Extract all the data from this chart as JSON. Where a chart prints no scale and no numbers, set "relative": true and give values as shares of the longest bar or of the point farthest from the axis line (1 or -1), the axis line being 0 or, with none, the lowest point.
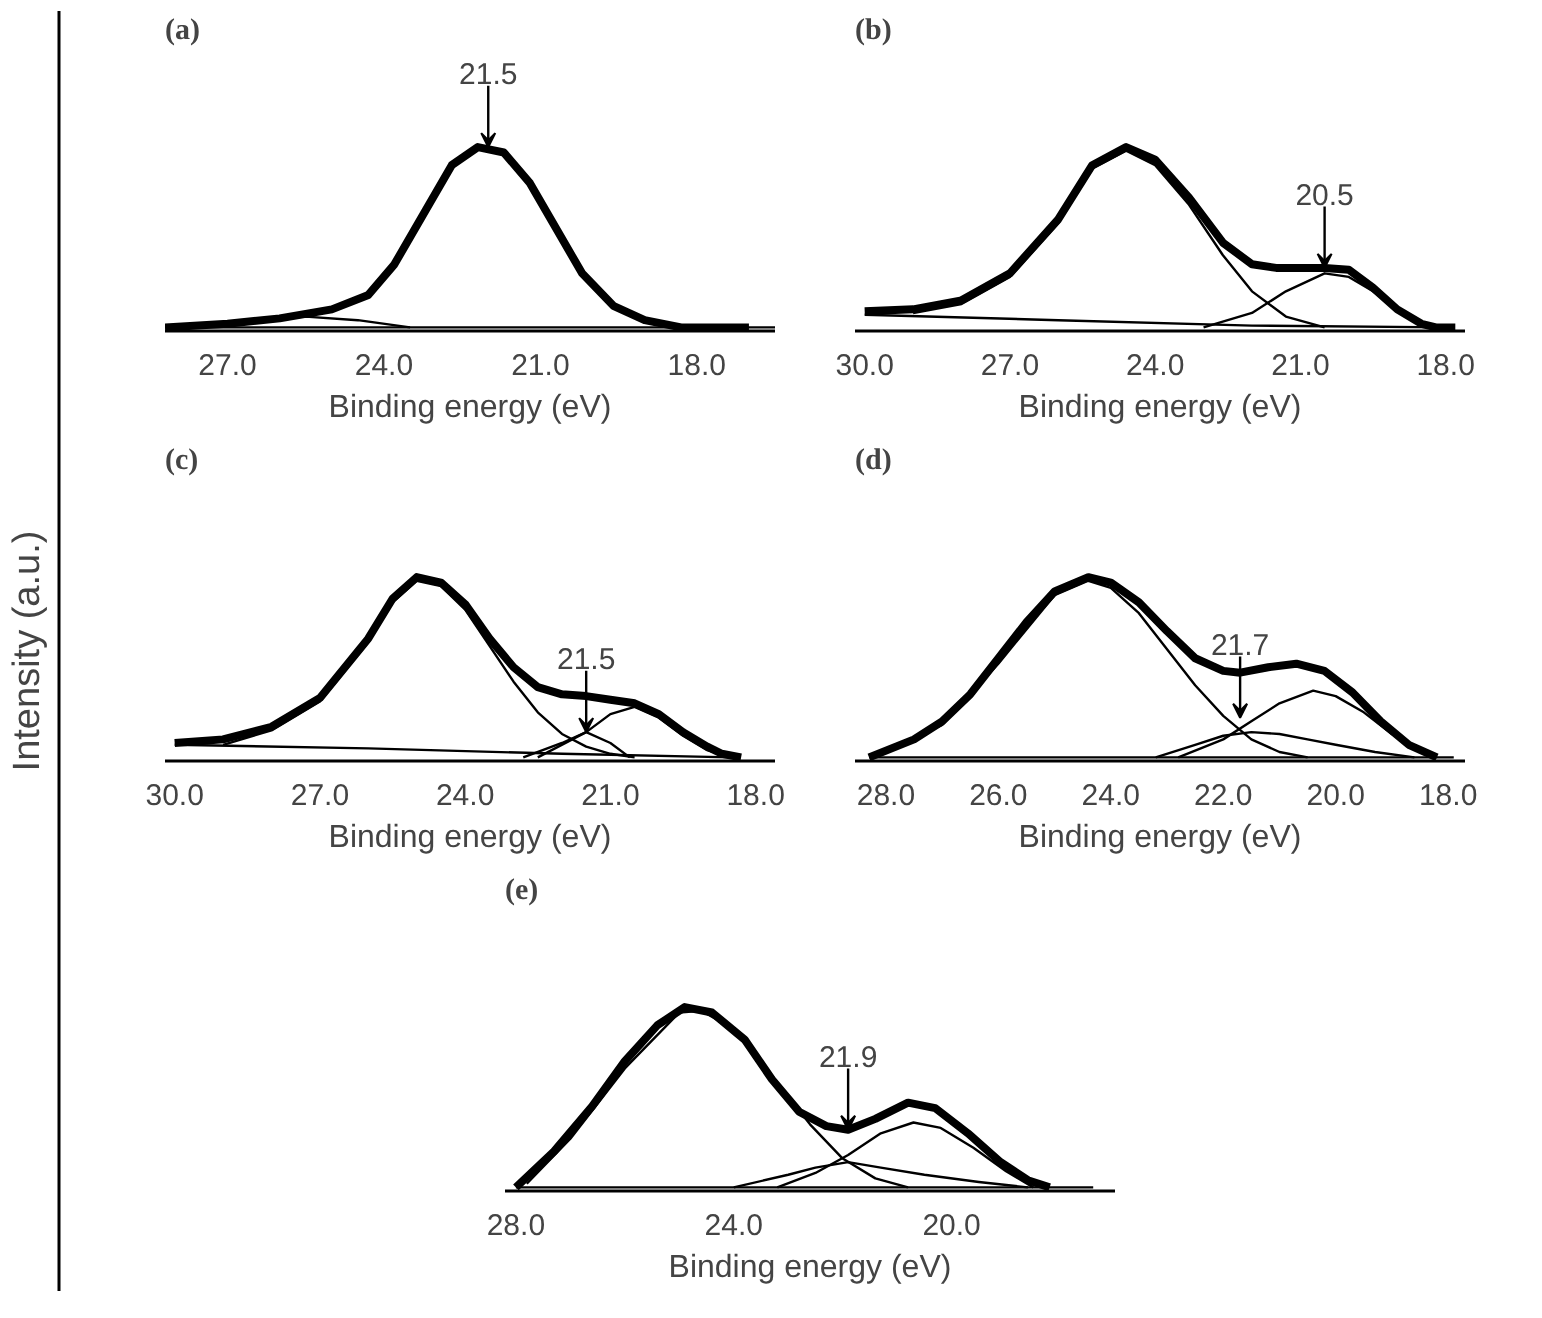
{
  "chart_data": [
    {
      "type": "line",
      "title": "(a)",
      "xlabel": "Binding energy (eV)",
      "ylabel": "Intensity (a.u.)",
      "relative": true,
      "xlim": [
        28.2,
        16.5
      ],
      "xticks": [
        {
          "value": 27,
          "label": "27.0"
        },
        {
          "value": 24,
          "label": "24.0"
        },
        {
          "value": 21,
          "label": "21.0"
        },
        {
          "value": 18,
          "label": "18.0"
        }
      ],
      "annotations": [
        {
          "text": "21.5",
          "x": 22.0,
          "y": 1.0
        }
      ],
      "series": [
        {
          "color": "#000000",
          "x": [
            28.2,
            27,
            26,
            25,
            24.3,
            23.8,
            23.2,
            22.7,
            22.2,
            21.7,
            21.2,
            20.7,
            20.2,
            19.6,
            19.0,
            18.3,
            17.0
          ],
          "values": [
            0.0,
            0.02,
            0.05,
            0.1,
            0.18,
            0.35,
            0.65,
            0.9,
            1.0,
            0.97,
            0.8,
            0.55,
            0.3,
            0.12,
            0.04,
            0.0,
            0.0
          ]
        },
        {
          "color": "#000000",
          "x": [
            27.5,
            26.5,
            25.5,
            24.5,
            23.5
          ],
          "values": [
            0.0,
            0.04,
            0.06,
            0.04,
            0.0
          ]
        },
        {
          "color": "#000000",
          "x": [
            28.2,
            16.5
          ],
          "values": [
            0.0,
            0.0
          ]
        }
      ]
    },
    {
      "type": "line",
      "title": "(b)",
      "xlabel": "Binding energy (eV)",
      "relative": true,
      "xlim": [
        30.2,
        17.6
      ],
      "xticks": [
        {
          "value": 30,
          "label": "30.0"
        },
        {
          "value": 27,
          "label": "27.0"
        },
        {
          "value": 24,
          "label": "24.0"
        },
        {
          "value": 21,
          "label": "21.0"
        },
        {
          "value": 18,
          "label": "18.0"
        }
      ],
      "annotations": [
        {
          "text": "20.5",
          "x": 20.5,
          "y": 0.33
        }
      ],
      "series": [
        {
          "color": "#000000",
          "x": [
            30,
            29,
            28,
            27,
            26,
            25.3,
            24.6,
            24,
            23.3,
            22.6,
            22,
            21.5,
            20.5,
            20,
            19.5,
            19,
            18.5,
            18.2,
            17.8
          ],
          "values": [
            0.09,
            0.1,
            0.15,
            0.3,
            0.6,
            0.9,
            1.0,
            0.93,
            0.72,
            0.47,
            0.35,
            0.33,
            0.33,
            0.32,
            0.22,
            0.1,
            0.02,
            0.0,
            0.0
          ]
        },
        {
          "color": "#000000",
          "x": [
            29,
            28,
            27,
            26,
            25.3,
            24.6,
            24,
            23.3,
            22.6,
            22,
            21.3,
            20.5
          ],
          "values": [
            0.08,
            0.13,
            0.28,
            0.58,
            0.88,
            0.98,
            0.9,
            0.68,
            0.4,
            0.2,
            0.06,
            0.0
          ]
        },
        {
          "color": "#000000",
          "x": [
            23,
            22,
            21.3,
            20.5,
            20,
            19.5,
            19,
            18.5,
            18.2
          ],
          "values": [
            0.0,
            0.08,
            0.2,
            0.3,
            0.28,
            0.2,
            0.1,
            0.02,
            0.0
          ]
        },
        {
          "color": "#000000",
          "x": [
            30,
            26,
            22,
            18
          ],
          "values": [
            0.07,
            0.04,
            0.01,
            0.0
          ]
        }
      ]
    },
    {
      "type": "line",
      "title": "(c)",
      "xlabel": "Binding energy (eV)",
      "relative": true,
      "xlim": [
        30.2,
        17.6
      ],
      "xticks": [
        {
          "value": 30,
          "label": "30.0"
        },
        {
          "value": 27,
          "label": "27.0"
        },
        {
          "value": 24,
          "label": "24.0"
        },
        {
          "value": 21,
          "label": "21.0"
        },
        {
          "value": 18,
          "label": "18.0"
        }
      ],
      "annotations": [
        {
          "text": "21.5",
          "x": 21.5,
          "y": 0.14
        }
      ],
      "series": [
        {
          "color": "#000000",
          "x": [
            30,
            29,
            28,
            27,
            26,
            25.5,
            25,
            24.5,
            24,
            23.5,
            23,
            22.5,
            22,
            21.5,
            21,
            20.5,
            20,
            19.5,
            19,
            18.7,
            18.3
          ],
          "values": [
            0.08,
            0.1,
            0.17,
            0.33,
            0.66,
            0.88,
            1.0,
            0.97,
            0.85,
            0.66,
            0.5,
            0.39,
            0.35,
            0.34,
            0.32,
            0.3,
            0.24,
            0.14,
            0.06,
            0.02,
            0.0
          ]
        },
        {
          "color": "#000000",
          "x": [
            29,
            28,
            27,
            26,
            25.5,
            25,
            24.5,
            24,
            23.5,
            23,
            22.5,
            22,
            21.5,
            21,
            20.5
          ],
          "values": [
            0.07,
            0.15,
            0.31,
            0.64,
            0.86,
            0.98,
            0.95,
            0.82,
            0.62,
            0.42,
            0.25,
            0.13,
            0.06,
            0.02,
            0.0
          ]
        },
        {
          "color": "#000000",
          "x": [
            22.8,
            22,
            21.5,
            21,
            20.6
          ],
          "values": [
            0.0,
            0.08,
            0.14,
            0.08,
            0.0
          ]
        },
        {
          "color": "#000000",
          "x": [
            22.5,
            21.5,
            21,
            20.5,
            20,
            19.5,
            19,
            18.5
          ],
          "values": [
            0.0,
            0.14,
            0.24,
            0.28,
            0.22,
            0.12,
            0.04,
            0.0
          ]
        },
        {
          "color": "#000000",
          "x": [
            30,
            26,
            22,
            18.5
          ],
          "values": [
            0.07,
            0.05,
            0.02,
            0.0
          ]
        }
      ]
    },
    {
      "type": "line",
      "title": "(d)",
      "xlabel": "Binding energy (eV)",
      "relative": true,
      "xlim": [
        28.55,
        17.7
      ],
      "xticks": [
        {
          "value": 28,
          "label": "28.0"
        },
        {
          "value": 26,
          "label": "26.0"
        },
        {
          "value": 24,
          "label": "24.0"
        },
        {
          "value": 22,
          "label": "22.0"
        },
        {
          "value": 20,
          "label": "20.0"
        },
        {
          "value": 18,
          "label": "18.0"
        }
      ],
      "annotations": [
        {
          "text": "21.7",
          "x": 21.7,
          "y": 0.22
        }
      ],
      "series": [
        {
          "color": "#000000",
          "x": [
            28.3,
            27.5,
            27,
            26.5,
            26,
            25.5,
            25,
            24.4,
            24,
            23.5,
            23,
            22.5,
            22,
            21.7,
            21.2,
            20.7,
            20.2,
            19.7,
            19.2,
            18.7,
            18.2
          ],
          "values": [
            0.0,
            0.1,
            0.2,
            0.35,
            0.55,
            0.75,
            0.92,
            1.0,
            0.97,
            0.86,
            0.7,
            0.55,
            0.48,
            0.47,
            0.5,
            0.52,
            0.48,
            0.36,
            0.2,
            0.07,
            0.0
          ]
        },
        {
          "color": "#000000",
          "x": [
            28,
            27,
            26,
            25,
            24.4,
            24,
            23.5,
            23,
            22.5,
            22,
            21.5,
            21,
            20.5
          ],
          "values": [
            0.03,
            0.18,
            0.52,
            0.9,
            0.98,
            0.94,
            0.8,
            0.6,
            0.4,
            0.23,
            0.1,
            0.03,
            0.0
          ]
        },
        {
          "color": "#000000",
          "x": [
            23.2,
            22.5,
            22,
            21.5,
            21,
            20.5,
            20,
            19.3,
            18.6
          ],
          "values": [
            0.0,
            0.07,
            0.12,
            0.14,
            0.13,
            0.1,
            0.07,
            0.03,
            0.0
          ]
        },
        {
          "color": "#000000",
          "x": [
            22.8,
            22,
            21.5,
            21,
            20.4,
            20,
            19.5,
            19,
            18.5,
            18.2
          ],
          "values": [
            0.0,
            0.1,
            0.2,
            0.3,
            0.37,
            0.34,
            0.25,
            0.13,
            0.04,
            0.0
          ]
        },
        {
          "color": "#000000",
          "x": [
            28.3,
            17.9
          ],
          "values": [
            0.0,
            0.0
          ]
        }
      ]
    },
    {
      "type": "line",
      "title": "(e)",
      "xlabel": "Binding energy (eV)",
      "relative": true,
      "xlim": [
        28.2,
        17.0
      ],
      "xticks": [
        {
          "value": 28,
          "label": "28.0"
        },
        {
          "value": 24,
          "label": "24.0"
        },
        {
          "value": 20,
          "label": "20.0"
        }
      ],
      "annotations": [
        {
          "text": "21.9",
          "x": 21.9,
          "y": 0.32
        }
      ],
      "series": [
        {
          "color": "#000000",
          "x": [
            28.0,
            27.3,
            26.6,
            26,
            25.4,
            24.9,
            24.4,
            23.8,
            23.3,
            22.8,
            22.3,
            21.9,
            21.4,
            20.8,
            20.3,
            19.7,
            19.1,
            18.6,
            18.2
          ],
          "values": [
            0.0,
            0.2,
            0.45,
            0.7,
            0.9,
            1.0,
            0.97,
            0.82,
            0.6,
            0.42,
            0.34,
            0.32,
            0.38,
            0.47,
            0.44,
            0.3,
            0.14,
            0.04,
            0.0
          ]
        },
        {
          "color": "#000000",
          "x": [
            27.8,
            27,
            26,
            25,
            24.6,
            24,
            23.3,
            22.6,
            22,
            21.4,
            20.8
          ],
          "values": [
            0.02,
            0.27,
            0.66,
            0.97,
            0.98,
            0.88,
            0.62,
            0.35,
            0.16,
            0.05,
            0.0
          ]
        },
        {
          "color": "#000000",
          "x": [
            24,
            23,
            22.5,
            21.9,
            21.3,
            20.5,
            19.5,
            18.6
          ],
          "values": [
            0.0,
            0.07,
            0.11,
            0.14,
            0.11,
            0.07,
            0.03,
            0.0
          ]
        },
        {
          "color": "#000000",
          "x": [
            23.2,
            22.5,
            21.9,
            21.3,
            20.7,
            20.2,
            19.6,
            19,
            18.5
          ],
          "values": [
            0.0,
            0.08,
            0.18,
            0.3,
            0.36,
            0.33,
            0.22,
            0.09,
            0.0
          ]
        },
        {
          "color": "#000000",
          "x": [
            28.0,
            17.4
          ],
          "values": [
            0.0,
            0.0
          ]
        }
      ]
    }
  ]
}
